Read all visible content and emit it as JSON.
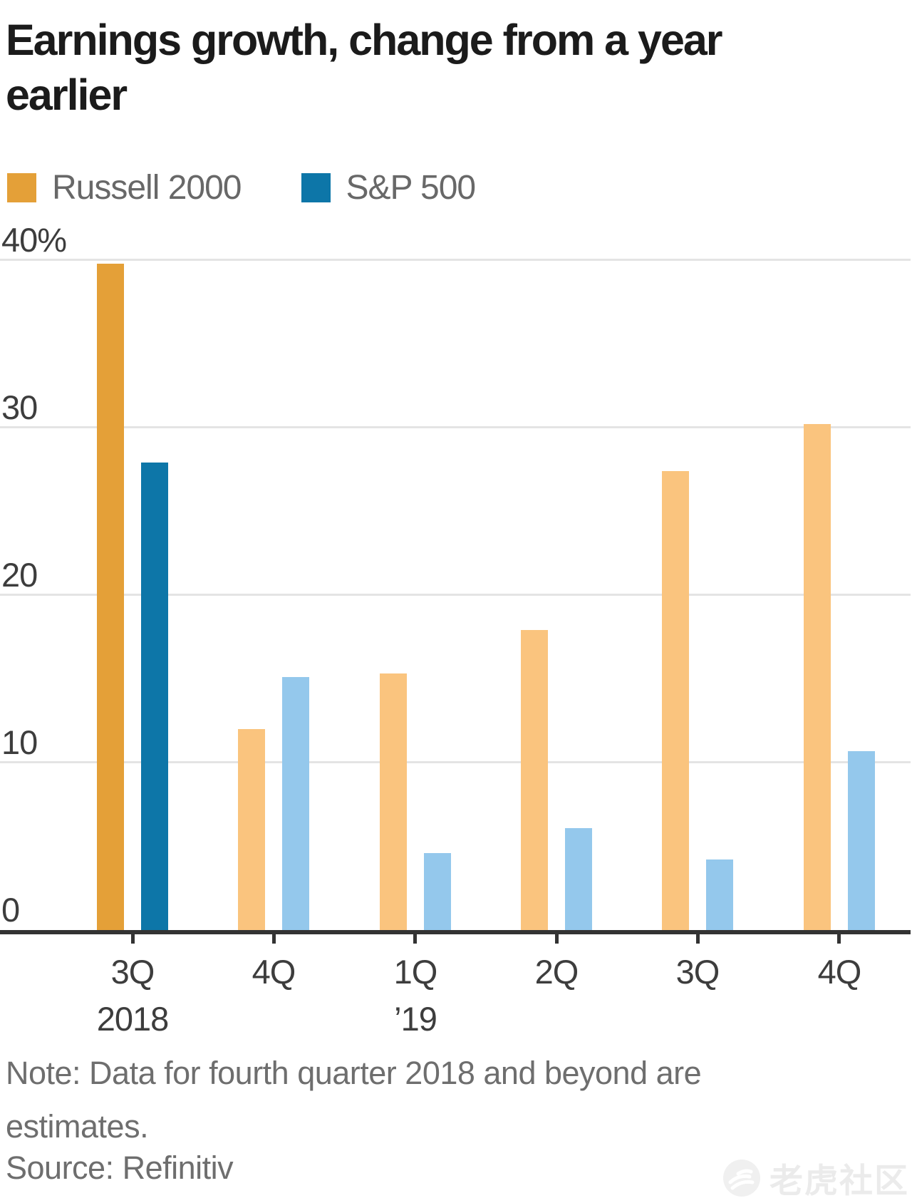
{
  "page": {
    "title_lines": [
      "Earnings growth, change from a year",
      "earlier"
    ],
    "note_lines": [
      "Note: Data for fourth quarter 2018 and beyond are",
      "estimates."
    ],
    "source": "Source: Refinitiv",
    "watermark_text": "老虎社区"
  },
  "legend": {
    "items": [
      {
        "label": "Russell 2000",
        "color": "#E4A038"
      },
      {
        "label": "S&P 500",
        "color": "#0D76A8"
      }
    ]
  },
  "chart_data": {
    "type": "bar",
    "title": "Earnings growth, change from a year earlier",
    "categories": [
      "3Q 2018",
      "4Q 2018",
      "1Q 2019",
      "2Q 2019",
      "3Q 2019",
      "4Q 2019"
    ],
    "x_tick_labels": [
      [
        "3Q",
        "2018"
      ],
      [
        "4Q",
        ""
      ],
      [
        "1Q",
        "’19"
      ],
      [
        "2Q",
        ""
      ],
      [
        "3Q",
        ""
      ],
      [
        "4Q",
        ""
      ]
    ],
    "series": [
      {
        "name": "Russell 2000",
        "color": "#E4A038",
        "estimate_color": "#FAC47E",
        "values": [
          39.8,
          12.0,
          15.3,
          17.9,
          27.4,
          30.2
        ]
      },
      {
        "name": "S&P 500",
        "color": "#0D76A8",
        "estimate_color": "#94C8EC",
        "values": [
          27.9,
          15.1,
          4.6,
          6.1,
          4.2,
          10.7
        ]
      }
    ],
    "estimates_start_index": 1,
    "ylim": [
      0,
      40
    ],
    "y_ticks": [
      {
        "value": 40,
        "label": "40%"
      },
      {
        "value": 30,
        "label": "30"
      },
      {
        "value": 20,
        "label": "20"
      },
      {
        "value": 10,
        "label": "10"
      },
      {
        "value": 0,
        "label": "0"
      }
    ],
    "grid": true,
    "legend_position": "top",
    "note": "Note: Data for fourth quarter 2018 and beyond are estimates.",
    "source": "Source: Refinitiv"
  },
  "colors": {
    "background": "#FFFFFF",
    "gridline": "#E4E4E4",
    "axis_line": "#333333",
    "axis_label": "#3D3D3D",
    "title_text": "#1B1B1B",
    "legend_text": "#686868",
    "note_text": "#6E6E6E",
    "watermark": "#EBEBEB"
  }
}
